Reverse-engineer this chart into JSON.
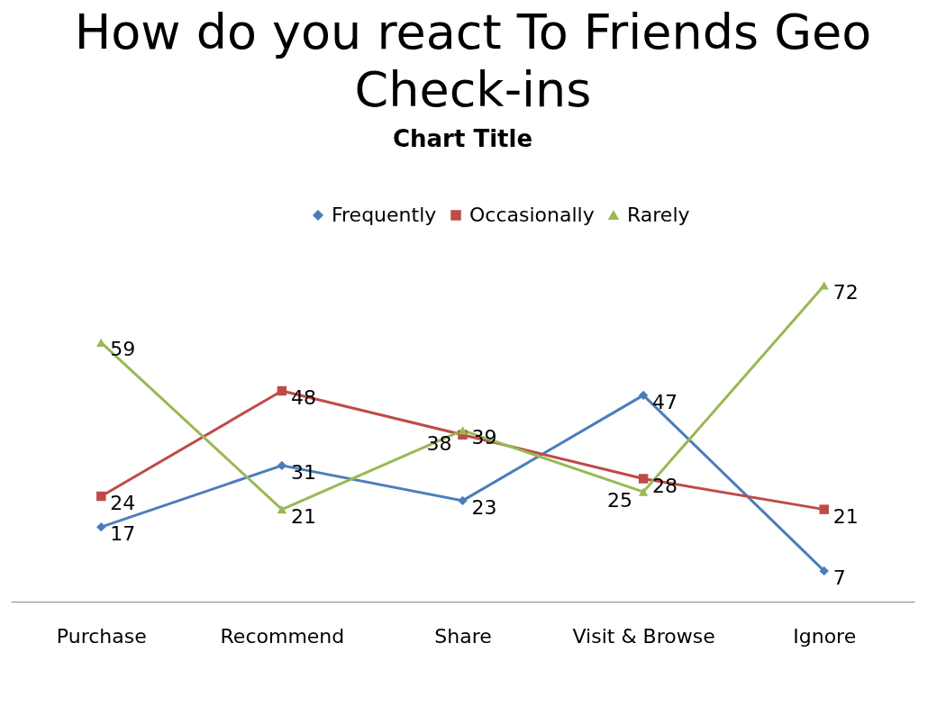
{
  "chart_data": {
    "type": "line",
    "title": "How do you react To Friends Geo Check-ins",
    "subtitle": "Chart Title",
    "categories": [
      "Purchase",
      "Recommend",
      "Share",
      "Visit & Browse",
      "Ignore"
    ],
    "series": [
      {
        "name": "Frequently",
        "color": "#4a7ebb",
        "marker": "diamond",
        "values": [
          17,
          31,
          23,
          47,
          7
        ]
      },
      {
        "name": "Occasionally",
        "color": "#be4b48",
        "marker": "square",
        "values": [
          24,
          48,
          38,
          28,
          21
        ]
      },
      {
        "name": "Rarely",
        "color": "#98b954",
        "marker": "triangle",
        "values": [
          59,
          21,
          39,
          25,
          72
        ]
      }
    ],
    "data_labels": true,
    "legend": "top"
  }
}
